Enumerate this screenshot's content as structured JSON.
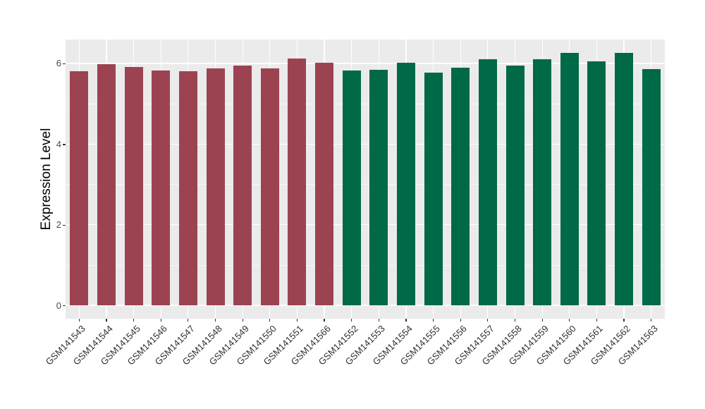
{
  "chart_data": {
    "type": "bar",
    "title": "",
    "xlabel": "",
    "ylabel": "Expression Level",
    "categories": [
      "GSM141543",
      "GSM141544",
      "GSM141545",
      "GSM141546",
      "GSM141547",
      "GSM141548",
      "GSM141549",
      "GSM141550",
      "GSM141551",
      "GSM141566",
      "GSM141552",
      "GSM141553",
      "GSM141554",
      "GSM141555",
      "GSM141556",
      "GSM141557",
      "GSM141558",
      "GSM141559",
      "GSM141560",
      "GSM141561",
      "GSM141562",
      "GSM141563"
    ],
    "values": [
      5.81,
      5.99,
      5.92,
      5.82,
      5.8,
      5.88,
      5.95,
      5.87,
      6.12,
      6.01,
      5.83,
      5.85,
      6.02,
      5.78,
      5.89,
      6.11,
      5.95,
      6.1,
      6.27,
      6.06,
      6.26,
      5.86
    ],
    "bar_groups": [
      "group1",
      "group1",
      "group1",
      "group1",
      "group1",
      "group1",
      "group1",
      "group1",
      "group1",
      "group1",
      "group2",
      "group2",
      "group2",
      "group2",
      "group2",
      "group2",
      "group2",
      "group2",
      "group2",
      "group2",
      "group2",
      "group2"
    ],
    "group_colors": {
      "group1": "#9C4351",
      "group2": "#006948"
    },
    "yticks": [
      0,
      2,
      4,
      6
    ],
    "ytick_labels": [
      "0",
      "2",
      "4",
      "6"
    ],
    "minor_breaks": [
      1,
      3,
      5
    ],
    "ylim": [
      0,
      6.59
    ],
    "x_label_angle": 45,
    "grid": "on",
    "legend_position": "none",
    "panel_background": "#EBEBEB",
    "grid_color": "#FFFFFF"
  }
}
